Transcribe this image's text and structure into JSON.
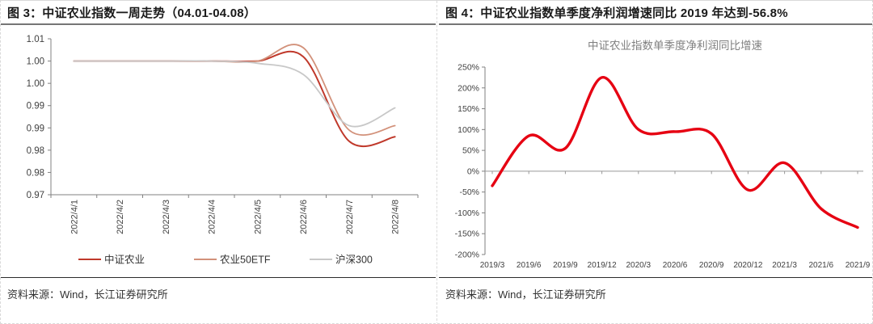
{
  "panels": {
    "left": {
      "title": "图 3：中证农业指数一周走势（04.01-04.08）",
      "source": "资料来源：Wind，长江证券研究所"
    },
    "right": {
      "title": "图 4：中证农业指数单季度净利润增速同比 2019 年达到-56.8%",
      "source": "资料来源：Wind，长江证券研究所"
    }
  },
  "colors": {
    "csi_agri_red": "#c0392b",
    "agri_etf_salmon": "#d2917a",
    "hs300_gray": "#c8c8c8",
    "profit_line_red": "#e60012",
    "axis_line": "#808080",
    "axis_text": "#404040",
    "inner_title_gray": "#7f7f7f",
    "legend_text": "#333333"
  },
  "chart_data": [
    {
      "type": "line",
      "title": "",
      "categories": [
        "2022/4/1",
        "2022/4/2",
        "2022/4/3",
        "2022/4/4",
        "2022/4/5",
        "2022/4/6",
        "2022/4/7",
        "2022/4/8"
      ],
      "y_tick_labels": [
        "1.01",
        "1.00",
        "1.00",
        "0.99",
        "0.99",
        "0.98",
        "0.98",
        "0.97"
      ],
      "ylim": [
        0.97,
        1.005
      ],
      "y_tick_step": 0.005,
      "grid": false,
      "legend_position": "bottom",
      "series": [
        {
          "name": "中证农业",
          "color": "#c0392b",
          "width": 2,
          "values": [
            1.0,
            1.0,
            1.0,
            1.0,
            1.0,
            1.001,
            0.982,
            0.983
          ]
        },
        {
          "name": "农业50ETF",
          "color": "#d2917a",
          "width": 1.8,
          "values": [
            1.0,
            1.0,
            1.0,
            1.0,
            1.0,
            1.003,
            0.9845,
            0.9855
          ]
        },
        {
          "name": "沪深300",
          "color": "#c8c8c8",
          "width": 1.8,
          "values": [
            1.0,
            1.0,
            1.0,
            1.0,
            0.9995,
            0.997,
            0.9855,
            0.9895
          ]
        }
      ]
    },
    {
      "type": "line",
      "title": "中证农业指数单季度净利润同比增速",
      "categories": [
        "2019/3",
        "2019/6",
        "2019/9",
        "2019/12",
        "2020/3",
        "2020/6",
        "2020/9",
        "2020/12",
        "2021/3",
        "2021/6",
        "2021/9"
      ],
      "values": [
        -35,
        85,
        55,
        225,
        100,
        95,
        90,
        -45,
        20,
        -90,
        -135
      ],
      "unit": "%",
      "y_tick_labels": [
        "250%",
        "200%",
        "150%",
        "100%",
        "50%",
        "0%",
        "-50%",
        "-100%",
        "-150%",
        "-200%"
      ],
      "ylim": [
        -200,
        250
      ],
      "y_tick_step": 50,
      "grid": false,
      "legend_position": "none",
      "series_color": "#e60012",
      "line_width": 3.4
    }
  ]
}
